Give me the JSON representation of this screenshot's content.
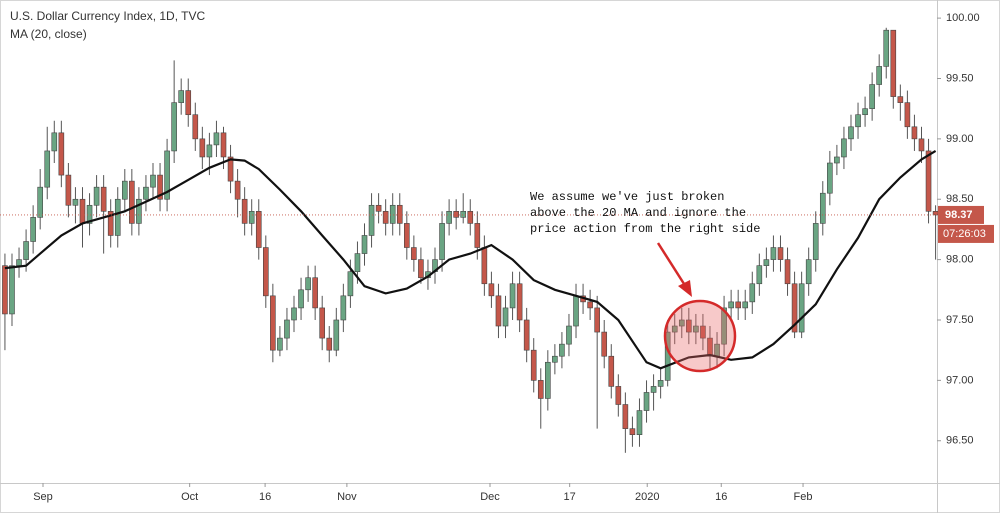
{
  "chart_data": {
    "type": "candlestick",
    "title": "U.S. Dollar Currency Index, 1D, TVC",
    "subtitle": "MA (20, close)",
    "up_color": "#6aa583",
    "down_color": "#c4574a",
    "ylim": [
      96.15,
      100.15
    ],
    "yticks": [
      {
        "value": 96.5,
        "label": "96.50"
      },
      {
        "value": 97,
        "label": "97.00"
      },
      {
        "value": 97.5,
        "label": "97.50"
      },
      {
        "value": 98,
        "label": "98.00"
      },
      {
        "value": 98.5,
        "label": "98.50"
      },
      {
        "value": 99,
        "label": "99.00"
      },
      {
        "value": 99.5,
        "label": "99.50"
      },
      {
        "value": 100,
        "label": "100.00"
      }
    ],
    "xlim": [
      -0.7,
      132.2
    ],
    "xticks": [
      {
        "value": 5.4,
        "label": "Sep"
      },
      {
        "value": 26.2,
        "label": "Oct"
      },
      {
        "value": 36.9,
        "label": "16"
      },
      {
        "value": 48.5,
        "label": "Nov"
      },
      {
        "value": 68.8,
        "label": "Dec"
      },
      {
        "value": 80.1,
        "label": "17"
      },
      {
        "value": 91.1,
        "label": "2020"
      },
      {
        "value": 101.6,
        "label": "16"
      },
      {
        "value": 113.2,
        "label": "Feb"
      }
    ],
    "open": [
      97.95,
      97.55,
      97.95,
      98.0,
      98.15,
      98.35,
      98.6,
      98.9,
      99.05,
      98.7,
      98.45,
      98.5,
      98.3,
      98.45,
      98.6,
      98.4,
      98.2,
      98.5,
      98.65,
      98.3,
      98.5,
      98.6,
      98.7,
      98.5,
      98.9,
      99.3,
      99.4,
      99.2,
      99.0,
      98.85,
      98.95,
      99.05,
      98.85,
      98.65,
      98.5,
      98.3,
      98.4,
      98.1,
      97.7,
      97.25,
      97.35,
      97.5,
      97.6,
      97.75,
      97.85,
      97.6,
      97.35,
      97.25,
      97.5,
      97.7,
      97.9,
      98.05,
      98.2,
      98.45,
      98.4,
      98.3,
      98.45,
      98.3,
      98.1,
      98.0,
      97.85,
      97.9,
      98.0,
      98.3,
      98.4,
      98.35,
      98.4,
      98.3,
      98.1,
      97.8,
      97.7,
      97.45,
      97.6,
      97.8,
      97.5,
      97.25,
      97.0,
      96.85,
      97.15,
      97.2,
      97.3,
      97.45,
      97.7,
      97.65,
      97.6,
      97.4,
      97.2,
      96.95,
      96.8,
      96.6,
      96.55,
      96.75,
      96.9,
      96.95,
      97.0,
      97.4,
      97.45,
      97.5,
      97.4,
      97.45,
      97.35,
      97.2,
      97.3,
      97.6,
      97.65,
      97.6,
      97.65,
      97.8,
      97.95,
      98.0,
      98.1,
      98.0,
      97.8,
      97.4,
      97.8,
      98.0,
      98.3,
      98.55,
      98.8,
      98.85,
      99.0,
      99.1,
      99.2,
      99.25,
      99.45,
      99.6,
      99.9,
      99.35,
      99.3,
      99.1,
      99.0,
      98.9,
      98.4
    ],
    "high": [
      98.05,
      98.05,
      98.1,
      98.25,
      98.45,
      98.75,
      99.1,
      99.15,
      99.15,
      98.8,
      98.6,
      98.6,
      98.55,
      98.7,
      98.7,
      98.5,
      98.6,
      98.75,
      98.75,
      98.6,
      98.7,
      98.8,
      98.8,
      99.0,
      99.65,
      99.5,
      99.5,
      99.3,
      99.1,
      99.05,
      99.15,
      99.1,
      98.95,
      98.75,
      98.6,
      98.5,
      98.5,
      98.2,
      97.8,
      97.45,
      97.6,
      97.7,
      97.85,
      97.95,
      97.95,
      97.7,
      97.45,
      97.6,
      97.8,
      98.0,
      98.15,
      98.3,
      98.55,
      98.55,
      98.5,
      98.55,
      98.55,
      98.4,
      98.2,
      98.1,
      98.0,
      98.1,
      98.4,
      98.5,
      98.5,
      98.55,
      98.5,
      98.4,
      98.2,
      97.9,
      97.8,
      97.7,
      97.9,
      97.9,
      97.6,
      97.35,
      97.1,
      97.25,
      97.3,
      97.4,
      97.55,
      97.8,
      97.8,
      97.75,
      97.7,
      97.5,
      97.3,
      97.05,
      96.9,
      96.7,
      96.85,
      97.0,
      97.05,
      97.1,
      97.5,
      97.55,
      97.6,
      97.6,
      97.55,
      97.55,
      97.45,
      97.4,
      97.7,
      97.75,
      97.75,
      97.75,
      97.9,
      98.05,
      98.1,
      98.2,
      98.2,
      98.1,
      97.9,
      97.9,
      98.1,
      98.4,
      98.65,
      98.9,
      98.95,
      99.1,
      99.2,
      99.3,
      99.35,
      99.55,
      99.7,
      99.92,
      99.9,
      99.45,
      99.4,
      99.2,
      99.1,
      99.0,
      98.45
    ],
    "low": [
      97.25,
      97.45,
      97.85,
      97.9,
      98.05,
      98.25,
      98.5,
      98.8,
      98.6,
      98.35,
      98.3,
      98.1,
      98.2,
      98.35,
      98.05,
      98.1,
      98.1,
      98.4,
      98.2,
      98.2,
      98.4,
      98.5,
      98.4,
      98.4,
      98.8,
      99.2,
      99.1,
      98.9,
      98.75,
      98.7,
      98.85,
      98.75,
      98.55,
      98.35,
      98.2,
      98.2,
      98.0,
      97.6,
      97.15,
      97.2,
      97.25,
      97.4,
      97.5,
      97.65,
      97.5,
      97.25,
      97.15,
      97.2,
      97.4,
      97.6,
      97.8,
      97.95,
      98.1,
      98.3,
      98.2,
      98.2,
      98.2,
      98.0,
      97.9,
      97.8,
      97.75,
      97.8,
      97.9,
      98.2,
      98.25,
      98.3,
      98.2,
      98.0,
      97.7,
      97.6,
      97.35,
      97.35,
      97.5,
      97.4,
      97.15,
      96.9,
      96.6,
      96.75,
      97.05,
      97.1,
      97.2,
      97.35,
      97.55,
      97.5,
      96.6,
      97.1,
      96.85,
      96.7,
      96.4,
      96.45,
      96.45,
      96.65,
      96.75,
      96.85,
      96.95,
      97.3,
      97.35,
      97.3,
      97.3,
      97.25,
      97.1,
      97.1,
      97.2,
      97.5,
      97.5,
      97.5,
      97.55,
      97.7,
      97.85,
      97.9,
      97.9,
      97.7,
      97.35,
      97.35,
      97.7,
      97.9,
      98.2,
      98.45,
      98.7,
      98.75,
      98.9,
      99.0,
      99.1,
      99.15,
      99.35,
      99.5,
      99.25,
      99.15,
      99.0,
      98.9,
      98.8,
      98.3,
      98.0
    ],
    "close": [
      97.55,
      97.95,
      98.0,
      98.15,
      98.35,
      98.6,
      98.9,
      99.05,
      98.7,
      98.45,
      98.5,
      98.3,
      98.45,
      98.6,
      98.4,
      98.2,
      98.5,
      98.65,
      98.3,
      98.5,
      98.6,
      98.7,
      98.5,
      98.9,
      99.3,
      99.4,
      99.2,
      99.0,
      98.85,
      98.95,
      99.05,
      98.85,
      98.65,
      98.5,
      98.3,
      98.4,
      98.1,
      97.7,
      97.25,
      97.35,
      97.5,
      97.6,
      97.75,
      97.85,
      97.6,
      97.35,
      97.25,
      97.5,
      97.7,
      97.9,
      98.05,
      98.2,
      98.45,
      98.4,
      98.3,
      98.45,
      98.3,
      98.1,
      98.0,
      97.85,
      97.9,
      98.0,
      98.3,
      98.4,
      98.35,
      98.4,
      98.3,
      98.1,
      97.8,
      97.7,
      97.45,
      97.6,
      97.8,
      97.5,
      97.25,
      97.0,
      96.85,
      97.15,
      97.2,
      97.3,
      97.45,
      97.7,
      97.65,
      97.6,
      97.4,
      97.2,
      96.95,
      96.8,
      96.6,
      96.55,
      96.75,
      96.9,
      96.95,
      97.0,
      97.4,
      97.45,
      97.5,
      97.4,
      97.45,
      97.35,
      97.2,
      97.3,
      97.6,
      97.65,
      97.6,
      97.65,
      97.8,
      97.95,
      98.0,
      98.1,
      98.0,
      97.8,
      97.4,
      97.8,
      98.0,
      98.3,
      98.55,
      98.8,
      98.85,
      99.0,
      99.1,
      99.2,
      99.25,
      99.45,
      99.6,
      99.9,
      99.35,
      99.3,
      99.1,
      99.0,
      98.9,
      98.4,
      98.37
    ],
    "ma": {
      "color": "#111111",
      "x": [
        0,
        3,
        5,
        8,
        11,
        14,
        17,
        20,
        23,
        26,
        29,
        32,
        34,
        36,
        39,
        42,
        45,
        48,
        51,
        54,
        57,
        60,
        63,
        66,
        69,
        72,
        75,
        78,
        81,
        84,
        87,
        91,
        93,
        97,
        100,
        103,
        106,
        109,
        112,
        115,
        118,
        121,
        124,
        127,
        130,
        132
      ],
      "values": [
        97.93,
        97.95,
        98.05,
        98.2,
        98.3,
        98.35,
        98.4,
        98.48,
        98.56,
        98.66,
        98.76,
        98.83,
        98.82,
        98.75,
        98.58,
        98.4,
        98.2,
        98.0,
        97.78,
        97.72,
        97.76,
        97.86,
        98.0,
        98.05,
        98.12,
        98.0,
        97.83,
        97.75,
        97.7,
        97.65,
        97.5,
        97.15,
        97.1,
        97.19,
        97.21,
        97.17,
        97.19,
        97.3,
        97.46,
        97.63,
        97.92,
        98.18,
        98.5,
        98.68,
        98.83,
        98.9
      ]
    },
    "last_price": 98.37,
    "countdown": "07:26:03",
    "annotation": [
      "We assume we've just broken",
      "above the 20 MA and ignore the",
      "price action from the right side"
    ]
  }
}
